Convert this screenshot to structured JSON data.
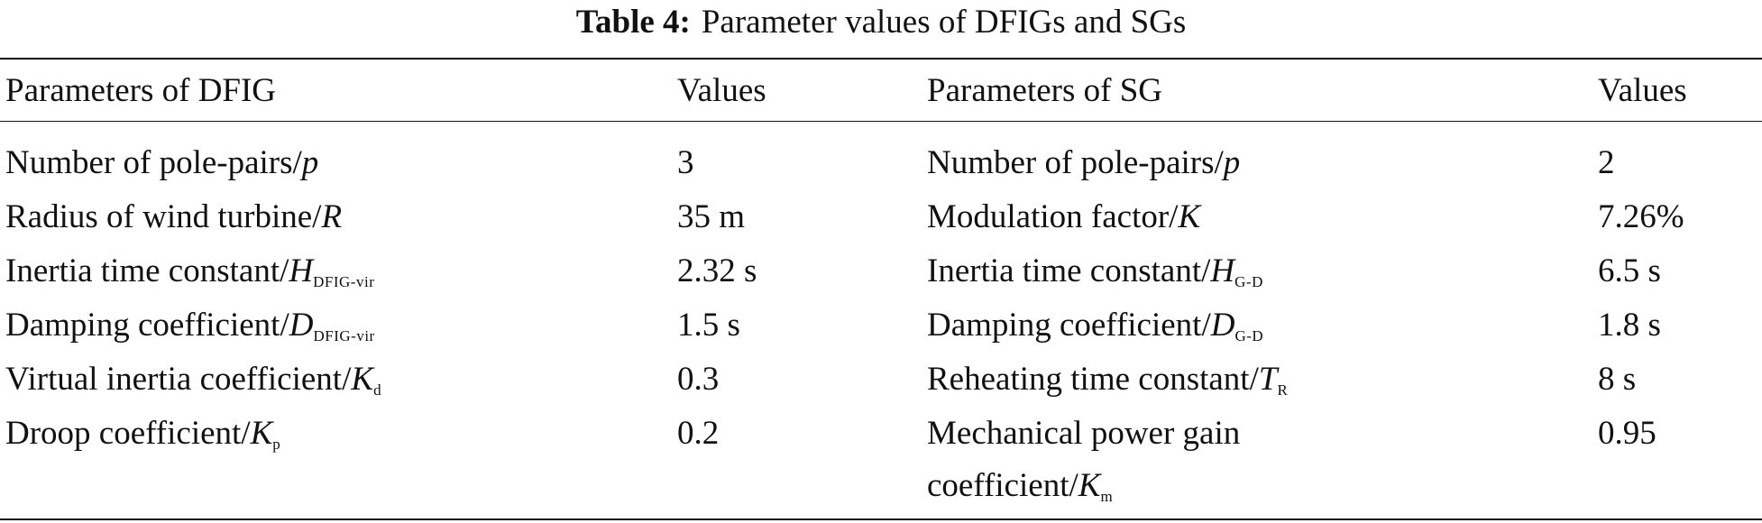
{
  "title": {
    "label": "Table 4:",
    "text": "Parameter values of DFIGs and SGs"
  },
  "table": {
    "header": [
      "Parameters of DFIG",
      "Values",
      "Parameters of SG",
      "Values"
    ],
    "rows": [
      [
        {
          "text": "Number of pole-pairs/",
          "symbol": "p"
        },
        "3",
        {
          "text": "Number of pole-pairs/",
          "symbol": "p"
        },
        "2"
      ],
      [
        {
          "text": "Radius of wind turbine/",
          "symbol": "R"
        },
        "35 m",
        {
          "text": "Modulation factor/",
          "symbol": "K"
        },
        "7.26%"
      ],
      [
        {
          "text": "Inertia time constant/",
          "symbol": "H",
          "sub": "DFIG-vir"
        },
        "2.32 s",
        {
          "text": "Inertia time constant/",
          "symbol": "H",
          "sub": "G-D"
        },
        "6.5 s"
      ],
      [
        {
          "text": "Damping coefficient/",
          "symbol": "D",
          "sub": "DFIG-vir"
        },
        "1.5 s",
        {
          "text": "Damping coefficient/",
          "symbol": "D",
          "sub": "G-D"
        },
        "1.8 s"
      ],
      [
        {
          "text": "Virtual inertia coefficient/",
          "symbol": "K",
          "sub": "d"
        },
        "0.3",
        {
          "text": "Reheating time constant/",
          "symbol": "T",
          "sub": "R"
        },
        "8 s"
      ],
      [
        {
          "text": "Droop coefficient/",
          "symbol": "K",
          "sub": "p"
        },
        "0.2",
        {
          "text": "Mechanical power gain coefficient/",
          "symbol": "K",
          "sub": "m"
        },
        "0.95"
      ]
    ]
  }
}
